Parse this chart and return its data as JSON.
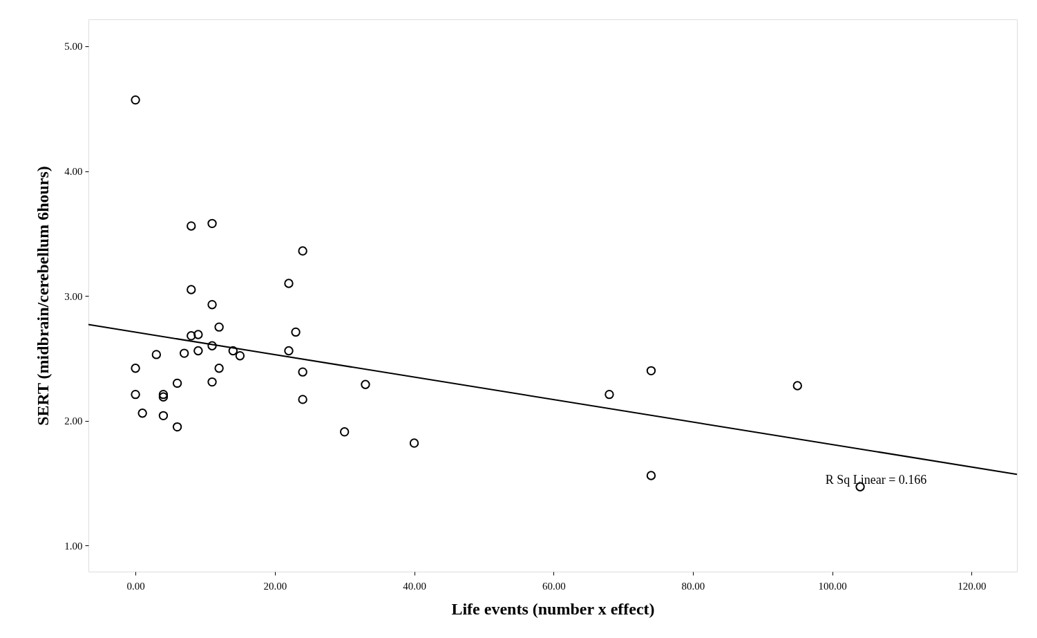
{
  "chart_data": {
    "type": "scatter",
    "xlabel": "Life events (number x effect)",
    "ylabel": "SERT (midbrain/cerebellum 6hours)",
    "xlim": [
      -6.75,
      126.5
    ],
    "ylim": [
      0.79,
      5.216
    ],
    "xticks": [
      {
        "value": 0,
        "label": "0.00"
      },
      {
        "value": 20,
        "label": "20.00"
      },
      {
        "value": 40,
        "label": "40.00"
      },
      {
        "value": 60,
        "label": "60.00"
      },
      {
        "value": 80,
        "label": "80.00"
      },
      {
        "value": 100,
        "label": "100.00"
      },
      {
        "value": 120,
        "label": "120.00"
      }
    ],
    "yticks": [
      {
        "value": 1,
        "label": "1.00"
      },
      {
        "value": 2,
        "label": "2.00"
      },
      {
        "value": 3,
        "label": "3.00"
      },
      {
        "value": 4,
        "label": "4.00"
      },
      {
        "value": 5,
        "label": "5.00"
      }
    ],
    "marker": "circle",
    "series": [
      {
        "color": "#000000",
        "x": [
          0,
          8,
          11,
          24,
          22,
          8,
          11,
          12,
          23,
          8,
          9,
          3,
          7,
          9,
          11,
          14,
          15,
          22,
          0,
          12,
          24,
          11,
          6,
          0,
          4,
          4,
          24,
          33,
          1,
          4,
          6,
          30,
          40,
          68,
          74,
          74,
          95,
          104
        ],
        "values": [
          4.57,
          3.56,
          3.58,
          3.36,
          3.1,
          3.05,
          2.93,
          2.75,
          2.71,
          2.68,
          2.69,
          2.53,
          2.54,
          2.56,
          2.6,
          2.56,
          2.52,
          2.56,
          2.42,
          2.42,
          2.39,
          2.31,
          2.3,
          2.21,
          2.21,
          2.19,
          2.17,
          2.29,
          2.06,
          2.04,
          1.95,
          1.91,
          1.82,
          2.21,
          2.4,
          1.56,
          2.28,
          1.47
        ]
      },
      {
        "type": "line",
        "color": "#000000",
        "line_style": "solid",
        "marker": "none",
        "x": [
          -6.75,
          126.5
        ],
        "values": [
          2.77,
          1.57
        ]
      }
    ],
    "annotations": [
      "R Sq Linear = 0.166"
    ]
  }
}
